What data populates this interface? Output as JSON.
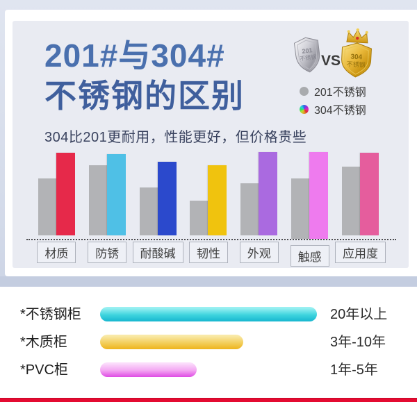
{
  "header": {
    "title_line1": "201#与304#",
    "title_line2": "不锈钢的区别",
    "subtitle": "304比201更耐用，性能更好，但价格贵些",
    "vs_label": "VS",
    "badge_silver": {
      "line1": "201",
      "line2": "不锈钢"
    },
    "badge_gold": {
      "line1": "304",
      "line2": "不锈钢"
    },
    "legend": [
      {
        "label": "201不锈钢",
        "swatch": "gray",
        "color": "#a9abae"
      },
      {
        "label": "304不锈钢",
        "swatch": "rainbow"
      }
    ],
    "title_colors": [
      "#4a70ae",
      "#3f5f9d"
    ]
  },
  "chart_data": [
    {
      "type": "bar",
      "title": "201不锈钢 与 304不锈钢 性能对比",
      "categories": [
        "材质",
        "防锈",
        "耐酸碱",
        "韧性",
        "外观",
        "触感",
        "应用度"
      ],
      "series": [
        {
          "name": "201不锈钢",
          "color": "#b2b3b6",
          "values": [
            66,
            81,
            55,
            40,
            60,
            70,
            79
          ]
        },
        {
          "name": "304不锈钢",
          "colors": [
            "#e6294a",
            "#4fc0e6",
            "#2b49cc",
            "#f0c30e",
            "#aa6ae0",
            "#ee7bee",
            "#e55d9d"
          ],
          "values": [
            95,
            94,
            85,
            81,
            96,
            100,
            95
          ]
        }
      ],
      "ylim": [
        0,
        100
      ],
      "grid": false,
      "legend_position": "top-right",
      "note": "relative scores, no numeric axis shown in figure"
    },
    {
      "type": "bar",
      "orientation": "horizontal",
      "title": "柜体材质使用年限",
      "categories": [
        "*不锈钢柜",
        "*木质柜",
        "*PVC柜"
      ],
      "values": [
        312,
        206,
        139
      ],
      "value_unit": "bar length px",
      "value_labels": [
        "20年以上",
        "3年-10年",
        "1年-5年"
      ],
      "bar_gradients": [
        [
          "#9af0f2",
          "#3fd4de",
          "#17b6cf"
        ],
        [
          "#f9e9a8",
          "#f3cf5e",
          "#eeb41c"
        ],
        [
          "#fbdcfb",
          "#f3a6f2",
          "#df4be4"
        ]
      ],
      "row_tops": [
        441,
        481,
        521
      ]
    }
  ],
  "footer": {
    "accent_color": "#e40b31"
  }
}
